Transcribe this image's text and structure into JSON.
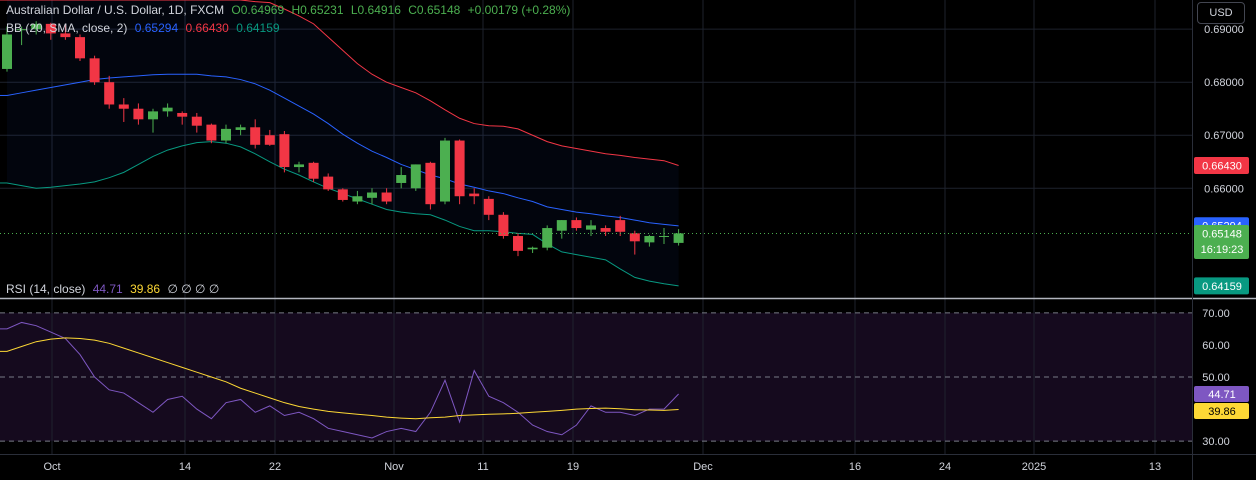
{
  "header": {
    "title": "Australian Dollar / U.S. Dollar, 1D, FXCM",
    "ohlc": {
      "open": "O0.64969",
      "high": "H0.65231",
      "low": "L0.64916",
      "close": "C0.65148",
      "change": "+0.00179 (+0.28%)"
    },
    "bb_label": "BB (20, SMA, close, 2)",
    "bb_values": {
      "middle": "0.65294",
      "upper": "0.66430",
      "lower": "0.64159"
    },
    "rsi_label": "RSI (14, close)",
    "rsi_values": {
      "rsi": "44.71",
      "ma": "39.86",
      "extra": "∅ ∅ ∅ ∅"
    }
  },
  "currency_button": "USD",
  "colors": {
    "up": "#4caf50",
    "down": "#f23645",
    "bb_middle": "#2962ff",
    "bb_upper": "#f23645",
    "bb_lower": "#089981",
    "rsi": "#7e57c2",
    "rsi_ma": "#fdd835",
    "background": "#000000",
    "grid": "#1e222d",
    "rsi_bg": "#150a1e"
  },
  "price_badges": {
    "upper": "0.66430",
    "middle": "0.65294",
    "last": "0.65148",
    "countdown": "16:19:23",
    "lower": "0.64159"
  },
  "rsi_badges": {
    "rsi": "44.71",
    "ma": "39.86"
  },
  "chart_data": [
    {
      "type": "candlestick",
      "title": "Australian Dollar / U.S. Dollar, 1D, FXCM",
      "ylim": [
        0.6395,
        0.6955
      ],
      "y_ticks": [
        "0.69000",
        "0.68000",
        "0.67000",
        "0.66000"
      ],
      "x_tick_labels": [
        "Oct",
        "14",
        "22",
        "Nov",
        "11",
        "19",
        "Dec",
        "16",
        "24",
        "2025",
        "13"
      ],
      "candles": [
        {
          "o": 0.6825,
          "h": 0.6905,
          "l": 0.682,
          "c": 0.689
        },
        {
          "o": 0.6898,
          "h": 0.6905,
          "l": 0.687,
          "c": 0.69
        },
        {
          "o": 0.69,
          "h": 0.6915,
          "l": 0.689,
          "c": 0.691
        },
        {
          "o": 0.691,
          "h": 0.6912,
          "l": 0.688,
          "c": 0.6892
        },
        {
          "o": 0.6892,
          "h": 0.691,
          "l": 0.688,
          "c": 0.6885
        },
        {
          "o": 0.6885,
          "h": 0.689,
          "l": 0.684,
          "c": 0.6845
        },
        {
          "o": 0.6845,
          "h": 0.685,
          "l": 0.6795,
          "c": 0.68
        },
        {
          "o": 0.68,
          "h": 0.6812,
          "l": 0.675,
          "c": 0.6758
        },
        {
          "o": 0.6758,
          "h": 0.677,
          "l": 0.6725,
          "c": 0.675
        },
        {
          "o": 0.675,
          "h": 0.676,
          "l": 0.672,
          "c": 0.673
        },
        {
          "o": 0.673,
          "h": 0.675,
          "l": 0.6705,
          "c": 0.6745
        },
        {
          "o": 0.6745,
          "h": 0.676,
          "l": 0.6735,
          "c": 0.6752
        },
        {
          "o": 0.6742,
          "h": 0.6745,
          "l": 0.672,
          "c": 0.6735
        },
        {
          "o": 0.6735,
          "h": 0.6742,
          "l": 0.6705,
          "c": 0.6718
        },
        {
          "o": 0.672,
          "h": 0.6722,
          "l": 0.6685,
          "c": 0.669
        },
        {
          "o": 0.669,
          "h": 0.672,
          "l": 0.6685,
          "c": 0.6712
        },
        {
          "o": 0.671,
          "h": 0.672,
          "l": 0.67,
          "c": 0.6715
        },
        {
          "o": 0.6715,
          "h": 0.673,
          "l": 0.6675,
          "c": 0.6682
        },
        {
          "o": 0.67,
          "h": 0.671,
          "l": 0.668,
          "c": 0.6682
        },
        {
          "o": 0.6702,
          "h": 0.6708,
          "l": 0.663,
          "c": 0.664
        },
        {
          "o": 0.664,
          "h": 0.665,
          "l": 0.663,
          "c": 0.6645
        },
        {
          "o": 0.6648,
          "h": 0.665,
          "l": 0.6612,
          "c": 0.6618
        },
        {
          "o": 0.6622,
          "h": 0.6628,
          "l": 0.6595,
          "c": 0.6598
        },
        {
          "o": 0.6598,
          "h": 0.66,
          "l": 0.6575,
          "c": 0.6578
        },
        {
          "o": 0.6575,
          "h": 0.6595,
          "l": 0.657,
          "c": 0.6585
        },
        {
          "o": 0.6582,
          "h": 0.66,
          "l": 0.657,
          "c": 0.6592
        },
        {
          "o": 0.6592,
          "h": 0.66,
          "l": 0.657,
          "c": 0.6575
        },
        {
          "o": 0.661,
          "h": 0.664,
          "l": 0.66,
          "c": 0.6625
        },
        {
          "o": 0.66,
          "h": 0.6645,
          "l": 0.6595,
          "c": 0.6645
        },
        {
          "o": 0.6648,
          "h": 0.665,
          "l": 0.656,
          "c": 0.657
        },
        {
          "o": 0.6575,
          "h": 0.6695,
          "l": 0.657,
          "c": 0.669
        },
        {
          "o": 0.669,
          "h": 0.6692,
          "l": 0.657,
          "c": 0.6585
        },
        {
          "o": 0.659,
          "h": 0.66,
          "l": 0.657,
          "c": 0.6585
        },
        {
          "o": 0.658,
          "h": 0.6585,
          "l": 0.654,
          "c": 0.655
        },
        {
          "o": 0.655,
          "h": 0.6555,
          "l": 0.6505,
          "c": 0.651
        },
        {
          "o": 0.651,
          "h": 0.6515,
          "l": 0.6472,
          "c": 0.6482
        },
        {
          "o": 0.6485,
          "h": 0.649,
          "l": 0.6478,
          "c": 0.6488
        },
        {
          "o": 0.6488,
          "h": 0.653,
          "l": 0.6483,
          "c": 0.6525
        },
        {
          "o": 0.652,
          "h": 0.654,
          "l": 0.6505,
          "c": 0.654
        },
        {
          "o": 0.654,
          "h": 0.6545,
          "l": 0.652,
          "c": 0.6525
        },
        {
          "o": 0.6522,
          "h": 0.654,
          "l": 0.651,
          "c": 0.653
        },
        {
          "o": 0.6525,
          "h": 0.653,
          "l": 0.651,
          "c": 0.6518
        },
        {
          "o": 0.654,
          "h": 0.6548,
          "l": 0.651,
          "c": 0.6518
        },
        {
          "o": 0.6515,
          "h": 0.652,
          "l": 0.6475,
          "c": 0.65
        },
        {
          "o": 0.6498,
          "h": 0.6512,
          "l": 0.649,
          "c": 0.651
        },
        {
          "o": 0.651,
          "h": 0.6525,
          "l": 0.6495,
          "c": 0.651
        },
        {
          "o": 0.6497,
          "h": 0.6523,
          "l": 0.6492,
          "c": 0.6515
        }
      ],
      "series": [
        {
          "name": "BB Upper",
          "values": [
            0.6955,
            0.6955,
            0.6955,
            0.6955,
            0.6955,
            0.6955,
            0.6955,
            0.6955,
            0.6955,
            0.6955,
            0.6955,
            0.6955,
            0.6955,
            0.6955,
            0.6955,
            0.6955,
            0.6955,
            0.6952,
            0.695,
            0.6938,
            0.6925,
            0.691,
            0.6885,
            0.686,
            0.6835,
            0.6815,
            0.68,
            0.679,
            0.678,
            0.6765,
            0.6748,
            0.6732,
            0.6722,
            0.6718,
            0.6717,
            0.6712,
            0.67,
            0.6688,
            0.668,
            0.6675,
            0.667,
            0.6665,
            0.6662,
            0.6658,
            0.6655,
            0.6652,
            0.6643
          ]
        },
        {
          "name": "BB Middle",
          "values": [
            0.6775,
            0.678,
            0.6785,
            0.679,
            0.6795,
            0.68,
            0.6805,
            0.6808,
            0.681,
            0.6812,
            0.6814,
            0.6815,
            0.6815,
            0.6815,
            0.6812,
            0.681,
            0.6805,
            0.6797,
            0.6785,
            0.677,
            0.6755,
            0.674,
            0.6722,
            0.6702,
            0.6685,
            0.667,
            0.6658,
            0.6645,
            0.6635,
            0.6625,
            0.6618,
            0.6608,
            0.6602,
            0.6595,
            0.659,
            0.6582,
            0.6575,
            0.6565,
            0.656,
            0.6555,
            0.6552,
            0.6548,
            0.6545,
            0.654,
            0.6535,
            0.6532,
            0.6529
          ]
        },
        {
          "name": "BB Lower",
          "values": [
            0.661,
            0.6605,
            0.66,
            0.6602,
            0.6605,
            0.6608,
            0.6612,
            0.662,
            0.663,
            0.6645,
            0.666,
            0.6672,
            0.668,
            0.6686,
            0.6688,
            0.6685,
            0.6678,
            0.6665,
            0.665,
            0.6636,
            0.6625,
            0.6612,
            0.66,
            0.659,
            0.658,
            0.657,
            0.656,
            0.6555,
            0.6552,
            0.655,
            0.654,
            0.6528,
            0.652,
            0.652,
            0.6518,
            0.6515,
            0.6513,
            0.6495,
            0.648,
            0.6475,
            0.647,
            0.6465,
            0.6448,
            0.6432,
            0.6425,
            0.642,
            0.6416
          ]
        }
      ]
    },
    {
      "type": "line",
      "title": "RSI (14, close)",
      "ylim": [
        26,
        74
      ],
      "y_ticks": [
        "70.00",
        "60.00",
        "50.00",
        "30.00"
      ],
      "levels": [
        70,
        50,
        30
      ],
      "series": [
        {
          "name": "RSI",
          "values": [
            65,
            67,
            66,
            64,
            62,
            57,
            50,
            46,
            45,
            42,
            39,
            43,
            44,
            40,
            37,
            42,
            43,
            39,
            41,
            38,
            39,
            37,
            34,
            33,
            32,
            31,
            33,
            34,
            33,
            39,
            49,
            36,
            52,
            44,
            42,
            39,
            35,
            33,
            32,
            35,
            41,
            39,
            39,
            38,
            40,
            40,
            44.71
          ]
        },
        {
          "name": "RSI MA",
          "values": [
            58,
            59.5,
            61,
            61.8,
            62.2,
            62,
            61.5,
            60.5,
            59,
            57.5,
            56,
            54.5,
            53,
            51.5,
            50,
            48.5,
            46.5,
            45,
            43.5,
            42,
            40.8,
            40,
            39.3,
            38.8,
            38.4,
            38,
            37.5,
            37.2,
            37,
            37.3,
            37.5,
            38,
            38.2,
            38.4,
            38.5,
            38.7,
            39,
            39.3,
            39.6,
            40,
            40.2,
            40.3,
            40.1,
            39.8,
            39.7,
            39.6,
            39.86
          ]
        }
      ]
    }
  ]
}
